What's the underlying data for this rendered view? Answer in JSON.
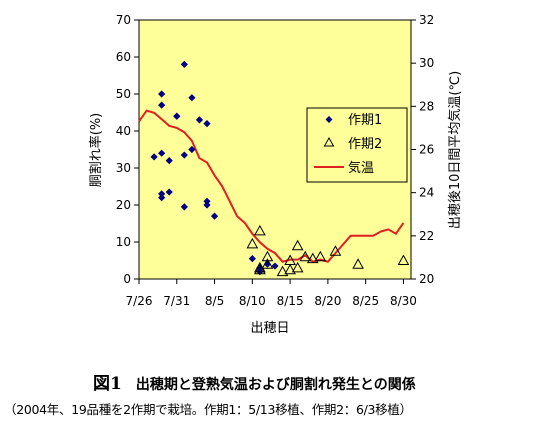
{
  "chart_data": {
    "type": "scatter",
    "title": "",
    "xlabel": "出穂日",
    "ylabel_left": "胴割れ率(%)",
    "ylabel_right": "出穂後10日間平均気温(℃)",
    "x_ticks": [
      "7/26",
      "7/31",
      "8/5",
      "8/10",
      "8/15",
      "8/20",
      "8/25",
      "8/30"
    ],
    "x_range_days_from_7_26": [
      0,
      36
    ],
    "y_left_ticks": [
      "0",
      "10",
      "20",
      "30",
      "40",
      "50",
      "60",
      "70"
    ],
    "ylim_left": [
      0,
      70
    ],
    "y_right_ticks": [
      "20",
      "22",
      "24",
      "26",
      "28",
      "30",
      "32"
    ],
    "ylim_right": [
      20,
      32
    ],
    "grid": false,
    "plot_background": "#ffff99",
    "legend_position": "center-right",
    "series": [
      {
        "name": "作期1",
        "marker": "diamond",
        "color": "#000080",
        "axis": "left",
        "points": [
          [
            "7/28",
            33
          ],
          [
            "7/29",
            34
          ],
          [
            "7/29",
            47
          ],
          [
            "7/29",
            50
          ],
          [
            "7/29",
            22
          ],
          [
            "7/29",
            23
          ],
          [
            "7/30",
            32
          ],
          [
            "7/30",
            23.5
          ],
          [
            "7/31",
            44
          ],
          [
            "7/31",
            44
          ],
          [
            "8/1",
            33.5
          ],
          [
            "8/1",
            58
          ],
          [
            "8/1",
            19.5
          ],
          [
            "8/2",
            49
          ],
          [
            "8/2",
            35
          ],
          [
            "8/3",
            43
          ],
          [
            "8/4",
            42
          ],
          [
            "8/4",
            21
          ],
          [
            "8/4",
            20
          ],
          [
            "8/5",
            17
          ],
          [
            "8/10",
            5.5
          ],
          [
            "8/11",
            2
          ],
          [
            "8/11",
            3
          ],
          [
            "8/12",
            4
          ],
          [
            "8/13",
            3.5
          ]
        ]
      },
      {
        "name": "作期2",
        "marker": "triangle",
        "color": "#000000",
        "axis": "left",
        "points": [
          [
            "8/10",
            9.5
          ],
          [
            "8/11",
            13
          ],
          [
            "8/11",
            3
          ],
          [
            "8/11",
            2.5
          ],
          [
            "8/12",
            6
          ],
          [
            "8/12",
            4
          ],
          [
            "8/14",
            2
          ],
          [
            "8/15",
            5
          ],
          [
            "8/15",
            2.5
          ],
          [
            "8/16",
            9
          ],
          [
            "8/16",
            3
          ],
          [
            "8/17",
            6
          ],
          [
            "8/18",
            5.5
          ],
          [
            "8/19",
            6
          ],
          [
            "8/21",
            7.5
          ],
          [
            "8/24",
            4
          ],
          [
            "8/30",
            5
          ]
        ]
      },
      {
        "name": "気温",
        "type": "line",
        "color": "#e02020",
        "axis": "right",
        "points": [
          [
            "7/26",
            27.3
          ],
          [
            "7/27",
            27.8
          ],
          [
            "7/28",
            27.7
          ],
          [
            "7/29",
            27.4
          ],
          [
            "7/30",
            27.1
          ],
          [
            "7/31",
            27.0
          ],
          [
            "8/1",
            26.8
          ],
          [
            "8/2",
            26.4
          ],
          [
            "8/3",
            25.6
          ],
          [
            "8/4",
            25.4
          ],
          [
            "8/5",
            24.8
          ],
          [
            "8/6",
            24.3
          ],
          [
            "8/7",
            23.6
          ],
          [
            "8/8",
            22.9
          ],
          [
            "8/9",
            22.6
          ],
          [
            "8/10",
            22.1
          ],
          [
            "8/11",
            21.7
          ],
          [
            "8/12",
            21.4
          ],
          [
            "8/13",
            21.2
          ],
          [
            "8/14",
            20.8
          ],
          [
            "8/15",
            20.9
          ],
          [
            "8/16",
            20.9
          ],
          [
            "8/17",
            21.1
          ],
          [
            "8/18",
            20.8
          ],
          [
            "8/19",
            20.9
          ],
          [
            "8/20",
            20.8
          ],
          [
            "8/21",
            21.2
          ],
          [
            "8/22",
            21.6
          ],
          [
            "8/23",
            22.0
          ],
          [
            "8/24",
            22.0
          ],
          [
            "8/25",
            22.0
          ],
          [
            "8/26",
            22.0
          ],
          [
            "8/27",
            22.2
          ],
          [
            "8/28",
            22.3
          ],
          [
            "8/29",
            22.1
          ],
          [
            "8/30",
            22.6
          ]
        ]
      }
    ]
  },
  "caption": {
    "figure_number": "図1",
    "title": "出穂期と登熟気温および胴割れ発生との関係",
    "note": "（2004年、19品種を2作期で栽培。作期1：5/13移植、作期2：6/3移植）"
  }
}
